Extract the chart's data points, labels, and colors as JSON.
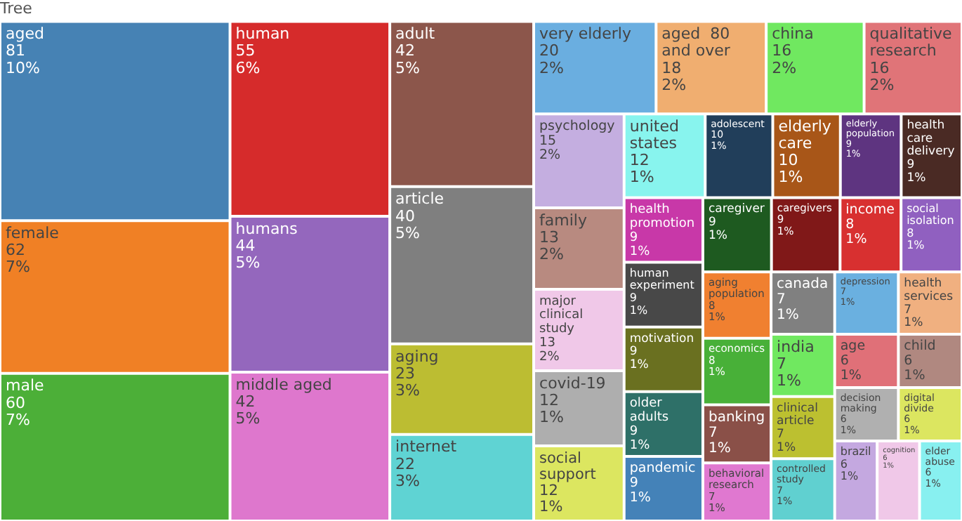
{
  "chart_data": {
    "type": "other",
    "title": "Tree",
    "categories": [
      "aged",
      "female",
      "male",
      "human",
      "humans",
      "middle aged",
      "adult",
      "article",
      "aging",
      "internet",
      "very elderly",
      "aged  80 and over",
      "china",
      "qualitative research",
      "psychology",
      "family",
      "major clinical study",
      "covid-19",
      "social support",
      "united states",
      "adolescent",
      "elderly care",
      "elderly population",
      "health care delivery",
      "health promotion",
      "human experiment",
      "motivation",
      "older adults",
      "pandemic",
      "caregiver",
      "caregivers",
      "income",
      "social isolation",
      "aging population",
      "economics",
      "banking",
      "behavioral research",
      "canada",
      "depression",
      "health services",
      "india",
      "clinical article",
      "controlled study",
      "age",
      "child",
      "decision making",
      "digital divide",
      "brazil",
      "cognition",
      "elder abuse"
    ],
    "values": [
      81,
      62,
      60,
      55,
      44,
      42,
      42,
      40,
      23,
      22,
      20,
      18,
      16,
      16,
      15,
      13,
      13,
      12,
      12,
      12,
      10,
      10,
      9,
      9,
      9,
      9,
      9,
      9,
      9,
      9,
      9,
      8,
      8,
      8,
      8,
      7,
      7,
      7,
      7,
      7,
      7,
      7,
      7,
      6,
      6,
      6,
      6,
      6,
      6,
      6
    ],
    "annotations": [
      {
        "text": "10%",
        "x": "aged"
      },
      {
        "text": "7%",
        "x": "female"
      },
      {
        "text": "7%",
        "x": "male"
      },
      {
        "text": "6%",
        "x": "human"
      },
      {
        "text": "5%",
        "x": "humans"
      },
      {
        "text": "5%",
        "x": "middle aged"
      },
      {
        "text": "5%",
        "x": "adult"
      },
      {
        "text": "5%",
        "x": "article"
      },
      {
        "text": "3%",
        "x": "aging"
      },
      {
        "text": "3%",
        "x": "internet"
      },
      {
        "text": "2%",
        "x": "very elderly"
      },
      {
        "text": "2%",
        "x": "aged  80 and over"
      },
      {
        "text": "2%",
        "x": "china"
      },
      {
        "text": "2%",
        "x": "qualitative research"
      },
      {
        "text": "2%",
        "x": "psychology"
      },
      {
        "text": "2%",
        "x": "family"
      },
      {
        "text": "2%",
        "x": "major clinical study"
      },
      {
        "text": "1%",
        "x": "covid-19"
      },
      {
        "text": "1%",
        "x": "social support"
      },
      {
        "text": "1%",
        "x": "united states"
      },
      {
        "text": "1%",
        "x": "adolescent"
      },
      {
        "text": "1%",
        "x": "elderly care"
      },
      {
        "text": "1%",
        "x": "elderly population"
      },
      {
        "text": "1%",
        "x": "health care delivery"
      },
      {
        "text": "1%",
        "x": "health promotion"
      },
      {
        "text": "1%",
        "x": "human experiment"
      },
      {
        "text": "1%",
        "x": "motivation"
      },
      {
        "text": "1%",
        "x": "older adults"
      },
      {
        "text": "1%",
        "x": "pandemic"
      },
      {
        "text": "1%",
        "x": "caregiver"
      },
      {
        "text": "1%",
        "x": "caregivers"
      },
      {
        "text": "1%",
        "x": "income"
      },
      {
        "text": "1%",
        "x": "social isolation"
      },
      {
        "text": "1%",
        "x": "aging population"
      },
      {
        "text": "1%",
        "x": "economics"
      },
      {
        "text": "1%",
        "x": "banking"
      },
      {
        "text": "1%",
        "x": "behavioral research"
      },
      {
        "text": "1%",
        "x": "canada"
      },
      {
        "text": "1%",
        "x": "depression"
      },
      {
        "text": "1%",
        "x": "health services"
      },
      {
        "text": "1%",
        "x": "india"
      },
      {
        "text": "1%",
        "x": "clinical article"
      },
      {
        "text": "1%",
        "x": "controlled study"
      },
      {
        "text": "1%",
        "x": "age"
      },
      {
        "text": "1%",
        "x": "child"
      },
      {
        "text": "1%",
        "x": "decision making"
      },
      {
        "text": "1%",
        "x": "digital divide"
      },
      {
        "text": "1%",
        "x": "brazil"
      },
      {
        "text": "1%",
        "x": "cognition"
      },
      {
        "text": "1%",
        "x": "elder abuse"
      }
    ],
    "data_labels": true,
    "colors": [
      "#4682b4",
      "#f08025",
      "#4caf38",
      "#d62b2b",
      "#9467bd",
      "#de77cd",
      "#8c564b",
      "#7f7f7f",
      "#bcbd32",
      "#5fd3d3",
      "#6aaee0",
      "#f0ae70",
      "#70e860",
      "#e07478",
      "#c4aee0",
      "#b88a80",
      "#f0c8e8",
      "#aeaeae",
      "#dce660",
      "#88f4ee",
      "#213e5a",
      "#a85618",
      "#5e3480",
      "#4a2a24",
      "#c838a8",
      "#484848",
      "#6a7020",
      "#2e7068",
      "#4482b8",
      "#1e5a20",
      "#801818",
      "#d83030",
      "#9060c0",
      "#f08030",
      "#48b038",
      "#8a5048",
      "#e078d0",
      "#808080",
      "#6ab0e0",
      "#f0b080",
      "#70e860",
      "#bcc030",
      "#60d0d0",
      "#e07078",
      "#b08880",
      "#b0b0b0",
      "#dce660",
      "#c4a8e0",
      "#f0c8e8",
      "#88f0f0"
    ]
  }
}
